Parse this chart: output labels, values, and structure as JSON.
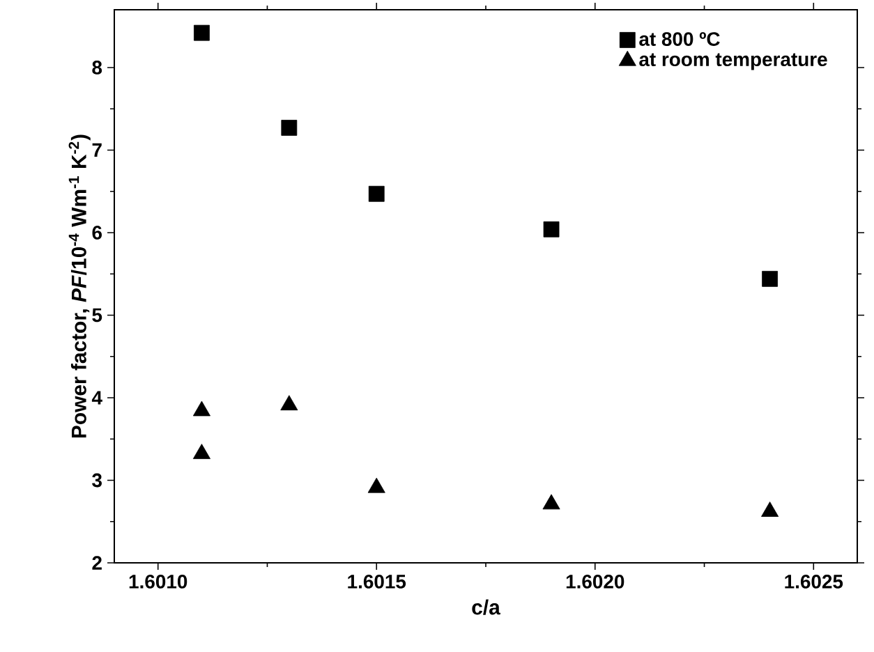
{
  "chart_data": {
    "type": "scatter",
    "xlabel": "c/a",
    "ylabel": "Power factor, *PF*/10$^{-4}$ Wm$^{-1}$ K$^{-2}$)",
    "xlim": [
      1.6009,
      1.6026
    ],
    "ylim": [
      2,
      8.7
    ],
    "xticks": [
      {
        "value": 1.601,
        "label": "1.6010"
      },
      {
        "value": 1.6015,
        "label": "1.6015"
      },
      {
        "value": 1.602,
        "label": "1.6020"
      },
      {
        "value": 1.6025,
        "label": "1.6025"
      }
    ],
    "yticks": [
      2,
      3,
      4,
      5,
      6,
      7,
      8
    ],
    "legend": "top right",
    "series": [
      {
        "name": "at 800 ºC",
        "color": "#000000",
        "marker": "square",
        "x": [
          1.6011,
          1.6013,
          1.6015,
          1.6019,
          1.6024
        ],
        "values": [
          8.42,
          7.27,
          6.47,
          6.04,
          5.44
        ]
      },
      {
        "name": "at room temperature",
        "color": "#000000",
        "marker": "triangle",
        "x": [
          1.6011,
          1.6011,
          1.6013,
          1.6015,
          1.6019,
          1.6024
        ],
        "values": [
          3.84,
          3.32,
          3.91,
          2.91,
          2.71,
          2.62
        ]
      }
    ]
  }
}
